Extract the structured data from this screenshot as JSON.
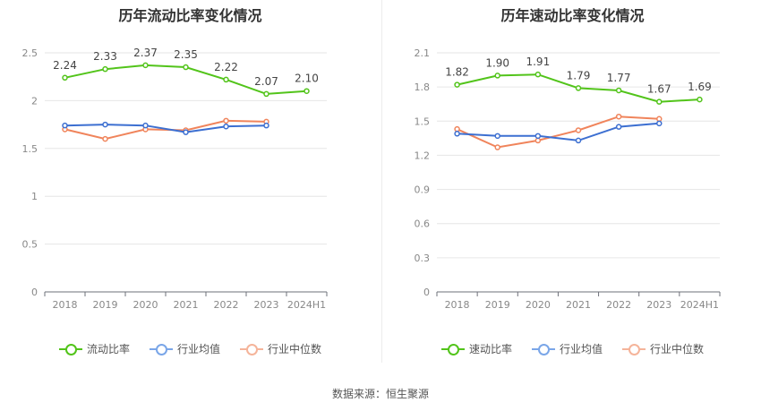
{
  "chart_data": [
    {
      "type": "line",
      "title": "历年流动比率变化情况",
      "categories": [
        "2018",
        "2019",
        "2020",
        "2021",
        "2022",
        "2023",
        "2024H1"
      ],
      "ylim": [
        0,
        2.5
      ],
      "yticks": [
        "0",
        "0.5",
        "1",
        "1.5",
        "2",
        "2.5"
      ],
      "grid": true,
      "legend_position": "bottom",
      "series": [
        {
          "name": "流动比率",
          "color": "#52c41a",
          "values": [
            2.24,
            2.33,
            2.37,
            2.35,
            2.22,
            2.07,
            2.1
          ],
          "labels": [
            "2.24",
            "2.33",
            "2.37",
            "2.35",
            "2.22",
            "2.07",
            "2.10"
          ]
        },
        {
          "name": "行业均值",
          "color": "#3c6fd1",
          "values": [
            1.74,
            1.75,
            1.74,
            1.67,
            1.73,
            1.74,
            null
          ]
        },
        {
          "name": "行业中位数",
          "color": "#f0845b",
          "values": [
            1.7,
            1.6,
            1.7,
            1.69,
            1.79,
            1.78,
            null
          ]
        }
      ]
    },
    {
      "type": "line",
      "title": "历年速动比率变化情况",
      "categories": [
        "2018",
        "2019",
        "2020",
        "2021",
        "2022",
        "2023",
        "2024H1"
      ],
      "ylim": [
        0,
        2.1
      ],
      "yticks": [
        "0",
        "0.3",
        "0.6",
        "0.9",
        "1.2",
        "1.5",
        "1.8",
        "2.1"
      ],
      "grid": true,
      "legend_position": "bottom",
      "series": [
        {
          "name": "速动比率",
          "color": "#52c41a",
          "values": [
            1.82,
            1.9,
            1.91,
            1.79,
            1.77,
            1.67,
            1.69
          ],
          "labels": [
            "1.82",
            "1.90",
            "1.91",
            "1.79",
            "1.77",
            "1.67",
            "1.69"
          ]
        },
        {
          "name": "行业均值",
          "color": "#3c6fd1",
          "values": [
            1.39,
            1.37,
            1.37,
            1.33,
            1.45,
            1.48,
            null
          ]
        },
        {
          "name": "行业中位数",
          "color": "#f0845b",
          "values": [
            1.43,
            1.27,
            1.33,
            1.42,
            1.54,
            1.52,
            null
          ]
        }
      ]
    }
  ],
  "legend_colors": [
    "#52c41a",
    "#7aa6e8",
    "#f5b49a"
  ],
  "source_text": "数据来源：恒生聚源"
}
